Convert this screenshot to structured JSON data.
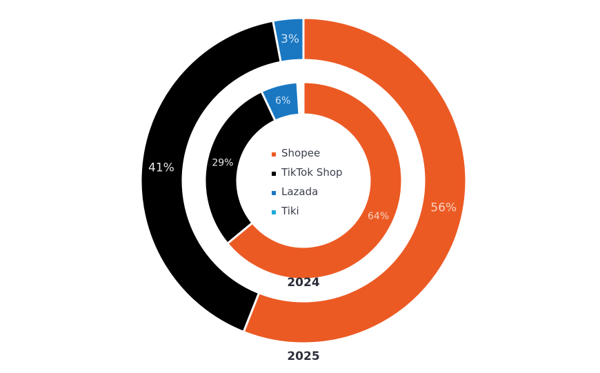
{
  "chart_data": {
    "type": "pie",
    "subtype": "nested-donut",
    "title": "",
    "categories": [
      "Shopee",
      "TikTok Shop",
      "Lazada",
      "Tiki"
    ],
    "colors": {
      "Shopee": "#ec5a24",
      "TikTok Shop": "#000000",
      "Lazada": "#1a78c2",
      "Tiki": "#1fa8d8"
    },
    "series": [
      {
        "name": "2024",
        "ring": "inner",
        "values": [
          64,
          29,
          6,
          0
        ],
        "labels": [
          "64%",
          "29%",
          "6%",
          ""
        ]
      },
      {
        "name": "2025",
        "ring": "outer",
        "values": [
          56,
          41,
          3,
          0
        ],
        "labels": [
          "56%",
          "41%",
          "3%",
          ""
        ]
      }
    ],
    "legend": {
      "position": "center",
      "entries": [
        "Shopee",
        "TikTok Shop",
        "Lazada",
        "Tiki"
      ]
    },
    "ring_labels": {
      "inner": "2024",
      "outer": "2025"
    }
  },
  "legend": {
    "items": [
      {
        "label": "Shopee",
        "color": "#ec5a24"
      },
      {
        "label": "TikTok Shop",
        "color": "#000000"
      },
      {
        "label": "Lazada",
        "color": "#1a78c2"
      },
      {
        "label": "Tiki",
        "color": "#1fa8d8"
      }
    ]
  },
  "year_labels": {
    "inner": "2024",
    "outer": "2025"
  }
}
